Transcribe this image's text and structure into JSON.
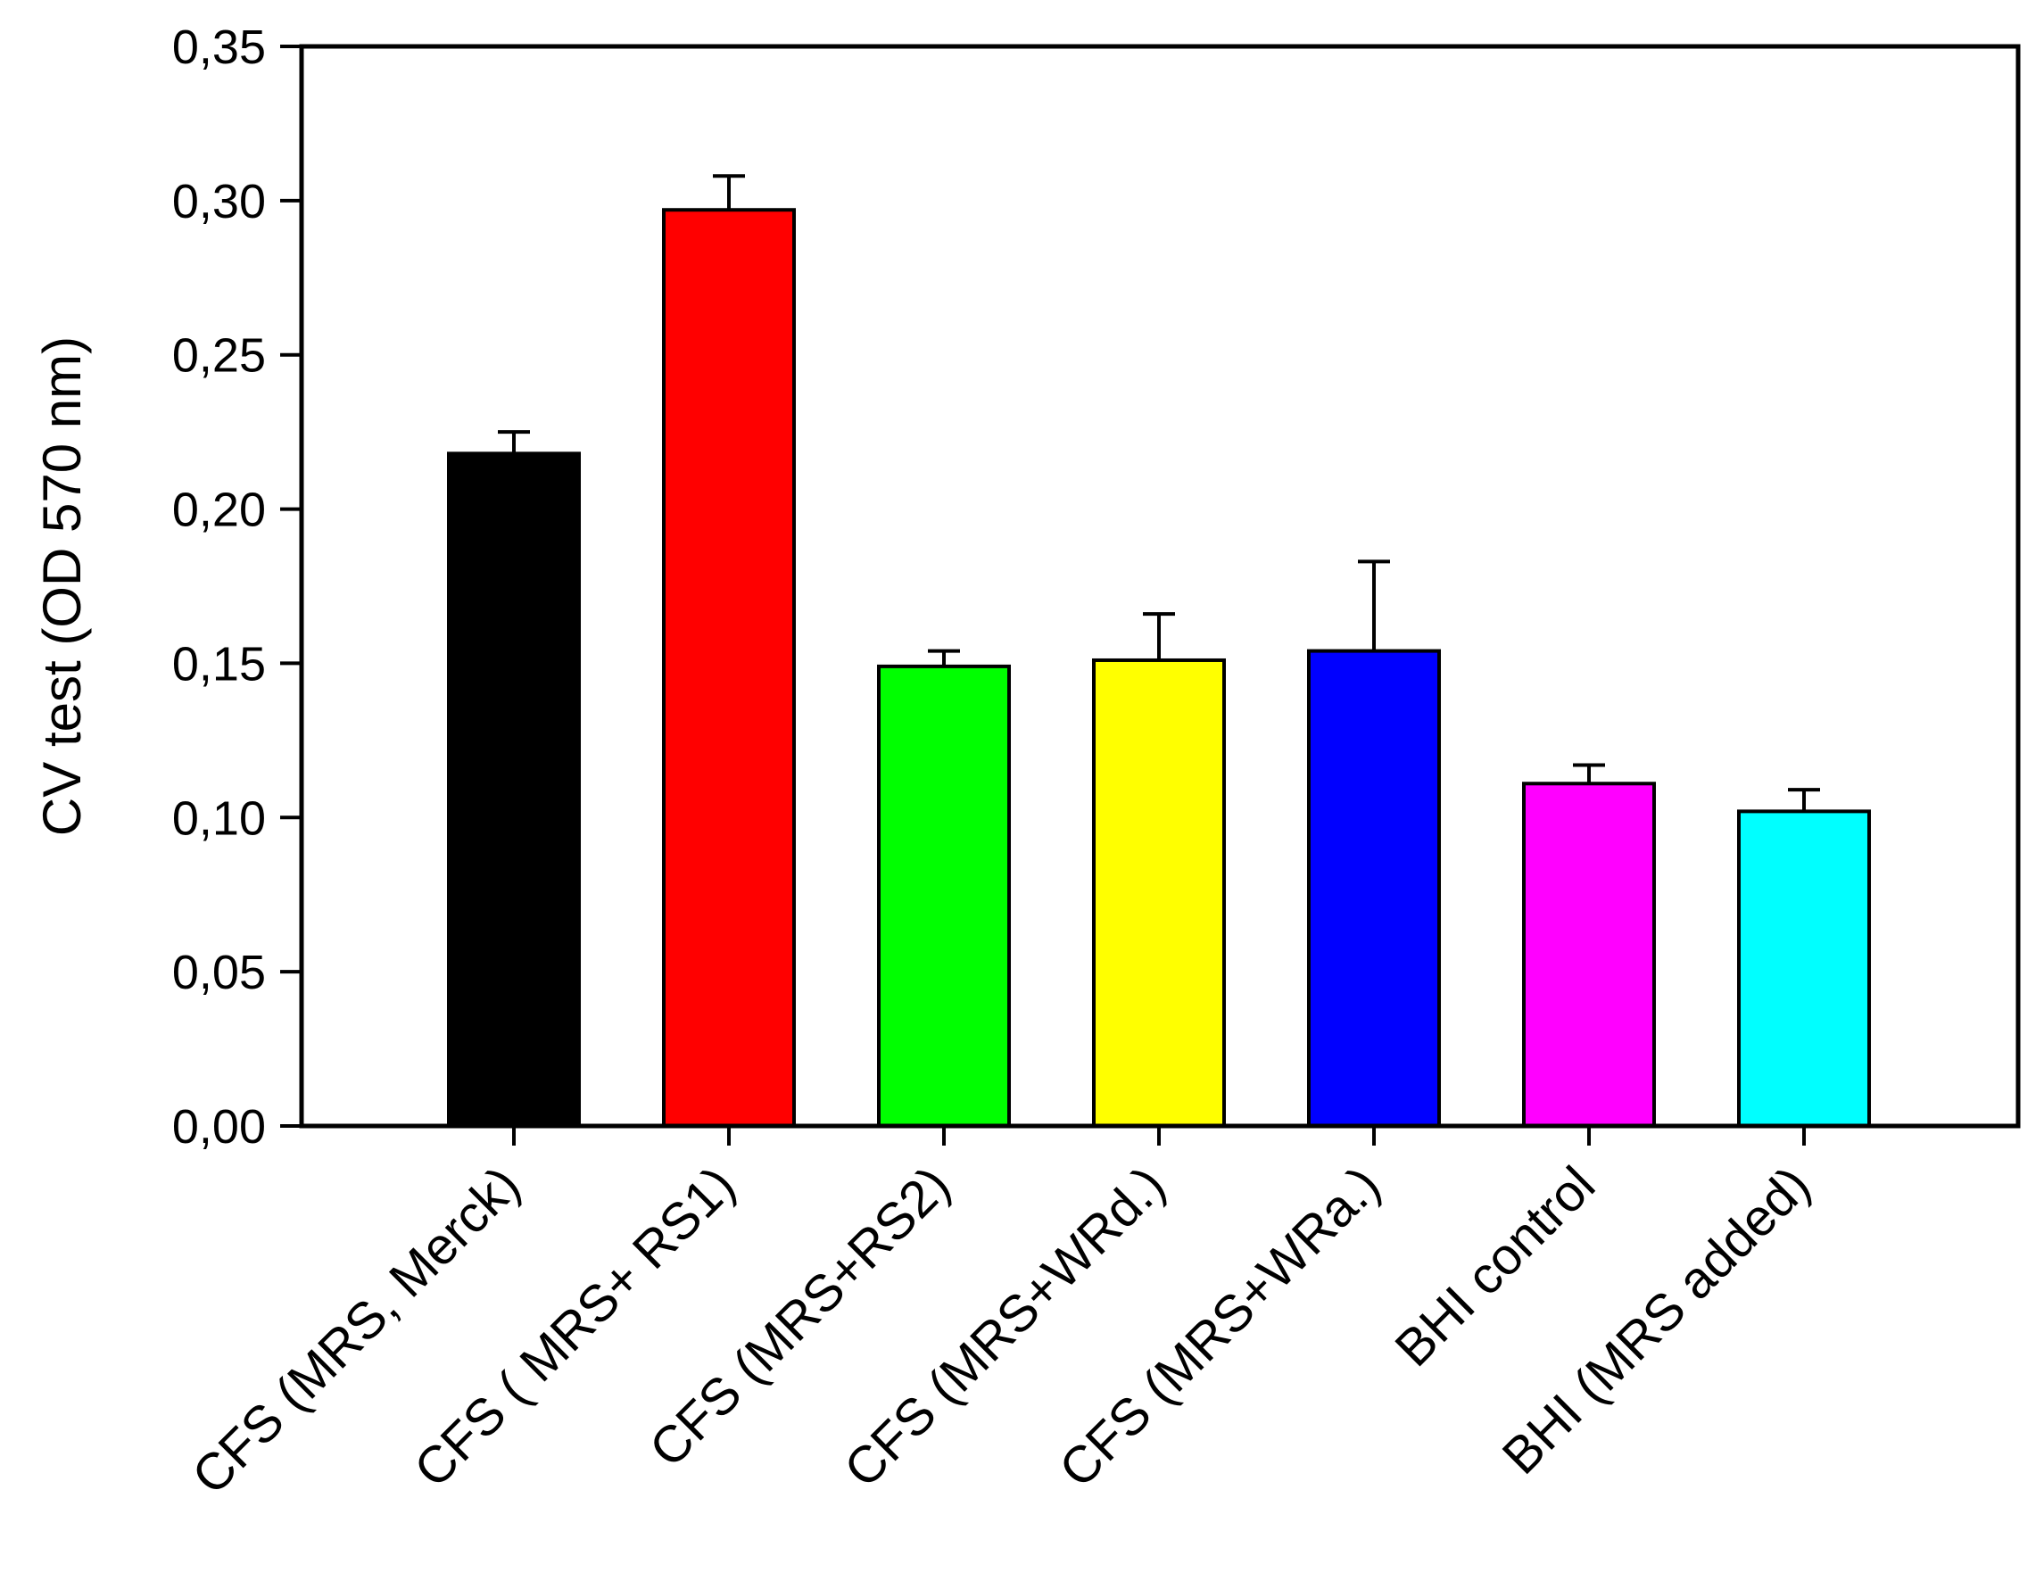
{
  "chart_data": {
    "type": "bar",
    "title": "",
    "xlabel": "",
    "ylabel": "CV test (OD 570 nm)",
    "ylim": [
      0,
      0.35
    ],
    "yticks": [
      0.0,
      0.05,
      0.1,
      0.15,
      0.2,
      0.25,
      0.3,
      0.35
    ],
    "ytick_labels": [
      "0,00",
      "0,05",
      "0,10",
      "0,15",
      "0,20",
      "0,25",
      "0,30",
      "0,35"
    ],
    "grid": false,
    "categories": [
      "CFS (MRS, Merck)",
      "CFS ( MRS+ RS1)",
      "CFS (MRS+RS2)",
      "CFS (MRS+WRd.)",
      "CFS (MRS+WRa.)",
      "BHI control",
      "BHI (MRS added)"
    ],
    "values": [
      0.218,
      0.297,
      0.149,
      0.151,
      0.154,
      0.111,
      0.102
    ],
    "errors": [
      0.007,
      0.011,
      0.005,
      0.015,
      0.029,
      0.006,
      0.007
    ],
    "colors": [
      "#000000",
      "#ff0000",
      "#00ff00",
      "#ffff00",
      "#0000ff",
      "#ff00ff",
      "#00ffff"
    ]
  }
}
